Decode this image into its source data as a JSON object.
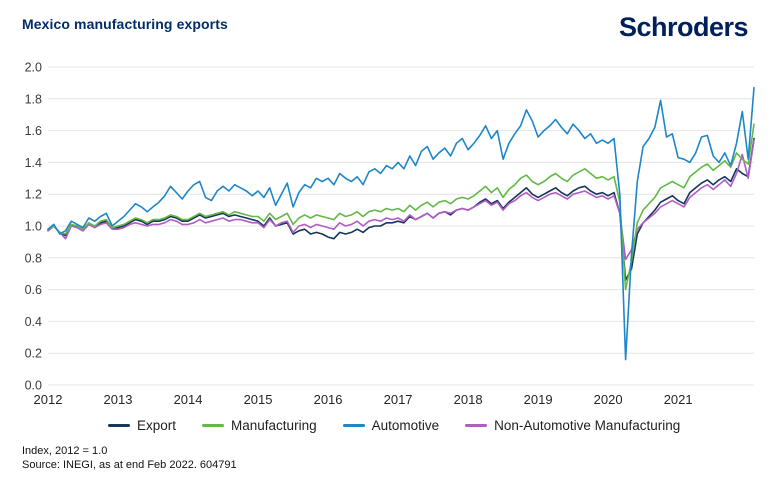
{
  "header": {
    "title": "Mexico manufacturing exports",
    "logo_text": "Schroders"
  },
  "footer": {
    "line1": "Index, 2012 = 1.0",
    "line2": "Source: INEGI, as at end Feb 2022. 604791"
  },
  "style_colors": {
    "brand_navy": "#001f5b",
    "title_blue": "#002d6b",
    "grid": "#e4e4e4",
    "axis_text": "#3c3c3c",
    "xaxis_text": "#262626"
  },
  "chart_data": {
    "type": "line",
    "title": "Mexico manufacturing exports",
    "x_frequency": "monthly",
    "x_start": "2012-01",
    "x_end": "2022-02",
    "ylim": [
      0,
      2.0
    ],
    "grid": "horizontal",
    "legend_position": "bottom",
    "ytick_labels": [
      "2.0",
      "1.8",
      "1.6",
      "1.4",
      "1.2",
      "1.0",
      "0.8",
      "0.6",
      "0.4",
      "0.2",
      "0.0"
    ],
    "xtick_labels": [
      "2012",
      "2013",
      "2014",
      "2015",
      "2016",
      "2017",
      "2018",
      "2019",
      "2020",
      "2021"
    ],
    "xtick_month_index": [
      0,
      12,
      24,
      36,
      48,
      60,
      72,
      84,
      96,
      108
    ],
    "series": [
      {
        "name": "Export",
        "color": "#16365d",
        "values": [
          0.97,
          1.0,
          0.96,
          0.94,
          1.01,
          0.99,
          0.97,
          1.01,
          0.99,
          1.02,
          1.03,
          0.98,
          0.99,
          1.0,
          1.02,
          1.04,
          1.03,
          1.01,
          1.03,
          1.03,
          1.04,
          1.06,
          1.05,
          1.03,
          1.03,
          1.05,
          1.07,
          1.05,
          1.06,
          1.07,
          1.08,
          1.06,
          1.07,
          1.06,
          1.05,
          1.04,
          1.03,
          1.0,
          1.05,
          1.0,
          1.01,
          1.02,
          0.95,
          0.97,
          0.98,
          0.95,
          0.96,
          0.95,
          0.93,
          0.92,
          0.96,
          0.95,
          0.96,
          0.98,
          0.96,
          0.99,
          1.0,
          1.0,
          1.02,
          1.02,
          1.03,
          1.02,
          1.06,
          1.04,
          1.06,
          1.08,
          1.05,
          1.08,
          1.09,
          1.07,
          1.1,
          1.11,
          1.1,
          1.12,
          1.15,
          1.17,
          1.14,
          1.16,
          1.11,
          1.15,
          1.18,
          1.21,
          1.24,
          1.2,
          1.18,
          1.2,
          1.22,
          1.24,
          1.21,
          1.19,
          1.22,
          1.24,
          1.25,
          1.22,
          1.2,
          1.21,
          1.19,
          1.21,
          1.08,
          0.66,
          0.73,
          0.95,
          1.02,
          1.06,
          1.1,
          1.15,
          1.17,
          1.19,
          1.16,
          1.14,
          1.21,
          1.24,
          1.27,
          1.29,
          1.26,
          1.29,
          1.31,
          1.28,
          1.36,
          1.33,
          1.31,
          1.55
        ]
      },
      {
        "name": "Manufacturing",
        "color": "#63b945",
        "values": [
          0.98,
          1.0,
          0.96,
          0.95,
          1.01,
          1.0,
          0.98,
          1.02,
          1.0,
          1.03,
          1.04,
          0.99,
          1.0,
          1.01,
          1.03,
          1.05,
          1.04,
          1.02,
          1.04,
          1.04,
          1.05,
          1.07,
          1.06,
          1.04,
          1.04,
          1.06,
          1.08,
          1.06,
          1.07,
          1.08,
          1.09,
          1.07,
          1.09,
          1.08,
          1.07,
          1.06,
          1.06,
          1.03,
          1.08,
          1.04,
          1.06,
          1.08,
          1.01,
          1.05,
          1.07,
          1.05,
          1.07,
          1.06,
          1.05,
          1.04,
          1.08,
          1.06,
          1.07,
          1.09,
          1.06,
          1.09,
          1.1,
          1.09,
          1.11,
          1.1,
          1.11,
          1.09,
          1.13,
          1.1,
          1.13,
          1.15,
          1.12,
          1.15,
          1.16,
          1.14,
          1.17,
          1.18,
          1.17,
          1.19,
          1.22,
          1.25,
          1.21,
          1.24,
          1.18,
          1.23,
          1.26,
          1.3,
          1.32,
          1.28,
          1.26,
          1.28,
          1.31,
          1.33,
          1.3,
          1.28,
          1.32,
          1.34,
          1.36,
          1.33,
          1.3,
          1.31,
          1.29,
          1.31,
          1.15,
          0.6,
          0.78,
          1.02,
          1.1,
          1.14,
          1.18,
          1.24,
          1.26,
          1.28,
          1.26,
          1.24,
          1.31,
          1.34,
          1.37,
          1.39,
          1.35,
          1.38,
          1.41,
          1.37,
          1.46,
          1.42,
          1.39,
          1.64
        ]
      },
      {
        "name": "Automotive",
        "color": "#1e87c9",
        "values": [
          0.98,
          1.01,
          0.95,
          0.97,
          1.03,
          1.01,
          0.99,
          1.05,
          1.03,
          1.06,
          1.08,
          1.0,
          1.03,
          1.06,
          1.1,
          1.14,
          1.12,
          1.09,
          1.12,
          1.15,
          1.19,
          1.25,
          1.21,
          1.17,
          1.22,
          1.26,
          1.28,
          1.18,
          1.16,
          1.22,
          1.25,
          1.22,
          1.26,
          1.24,
          1.22,
          1.19,
          1.22,
          1.18,
          1.24,
          1.13,
          1.2,
          1.27,
          1.12,
          1.21,
          1.26,
          1.24,
          1.3,
          1.28,
          1.3,
          1.26,
          1.33,
          1.3,
          1.28,
          1.31,
          1.26,
          1.34,
          1.36,
          1.33,
          1.38,
          1.36,
          1.4,
          1.36,
          1.44,
          1.38,
          1.47,
          1.5,
          1.42,
          1.46,
          1.49,
          1.44,
          1.52,
          1.55,
          1.48,
          1.52,
          1.57,
          1.63,
          1.55,
          1.6,
          1.42,
          1.52,
          1.58,
          1.63,
          1.73,
          1.66,
          1.56,
          1.6,
          1.63,
          1.67,
          1.62,
          1.58,
          1.64,
          1.6,
          1.55,
          1.58,
          1.52,
          1.54,
          1.52,
          1.55,
          1.2,
          0.16,
          0.82,
          1.28,
          1.5,
          1.55,
          1.62,
          1.79,
          1.56,
          1.58,
          1.43,
          1.42,
          1.4,
          1.46,
          1.56,
          1.57,
          1.44,
          1.4,
          1.46,
          1.38,
          1.52,
          1.72,
          1.42,
          1.87
        ]
      },
      {
        "name": "Non-Automotive Manufacturing",
        "color": "#b05ec2",
        "values": [
          0.97,
          1.0,
          0.96,
          0.92,
          1.0,
          0.99,
          0.97,
          1.01,
          0.99,
          1.01,
          1.02,
          0.98,
          0.98,
          0.99,
          1.01,
          1.02,
          1.01,
          1.0,
          1.01,
          1.01,
          1.02,
          1.04,
          1.03,
          1.01,
          1.01,
          1.02,
          1.04,
          1.02,
          1.03,
          1.04,
          1.05,
          1.03,
          1.04,
          1.04,
          1.03,
          1.02,
          1.02,
          0.99,
          1.04,
          1.0,
          1.02,
          1.03,
          0.96,
          1.0,
          1.01,
          0.99,
          1.01,
          1.0,
          0.99,
          0.98,
          1.02,
          1.0,
          1.01,
          1.03,
          1.0,
          1.03,
          1.04,
          1.03,
          1.05,
          1.04,
          1.05,
          1.03,
          1.07,
          1.04,
          1.06,
          1.08,
          1.05,
          1.08,
          1.09,
          1.08,
          1.1,
          1.11,
          1.1,
          1.12,
          1.14,
          1.16,
          1.13,
          1.15,
          1.1,
          1.14,
          1.16,
          1.19,
          1.21,
          1.18,
          1.16,
          1.18,
          1.2,
          1.21,
          1.19,
          1.17,
          1.2,
          1.21,
          1.22,
          1.2,
          1.18,
          1.19,
          1.17,
          1.19,
          1.08,
          0.79,
          0.85,
          0.98,
          1.02,
          1.05,
          1.08,
          1.12,
          1.14,
          1.16,
          1.14,
          1.12,
          1.18,
          1.21,
          1.24,
          1.26,
          1.23,
          1.26,
          1.29,
          1.25,
          1.33,
          1.45,
          1.3,
          1.54
        ]
      }
    ]
  }
}
